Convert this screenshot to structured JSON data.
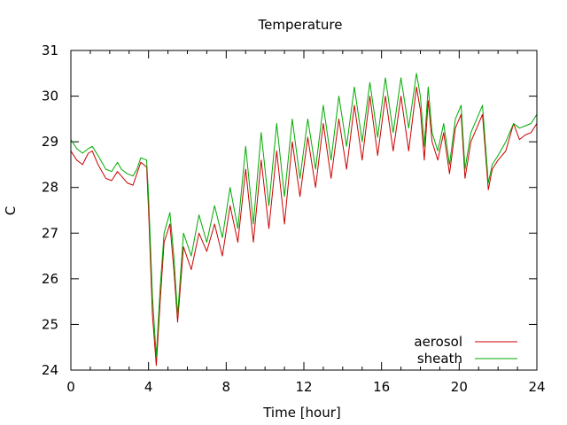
{
  "chart_data": {
    "type": "line",
    "title": "Temperature",
    "xlabel": "Time [hour]",
    "ylabel": "C",
    "xlim": [
      0,
      24
    ],
    "ylim": [
      24,
      31
    ],
    "xticks": [
      0,
      4,
      8,
      12,
      16,
      20,
      24
    ],
    "yticks": [
      24,
      25,
      26,
      27,
      28,
      29,
      30,
      31
    ],
    "grid": false,
    "legend_position": "bottom-right",
    "series": [
      {
        "name": "aerosol",
        "color": "#cc0000",
        "x": [
          0,
          0.3,
          0.6,
          0.9,
          1.1,
          1.4,
          1.8,
          2.1,
          2.4,
          2.6,
          2.9,
          3.2,
          3.4,
          3.6,
          3.9,
          4.0,
          4.2,
          4.4,
          4.6,
          4.8,
          5.1,
          5.3,
          5.5,
          5.8,
          6.2,
          6.6,
          7.0,
          7.4,
          7.8,
          8.2,
          8.6,
          9.0,
          9.4,
          9.8,
          10.2,
          10.6,
          11.0,
          11.4,
          11.8,
          12.2,
          12.6,
          13.0,
          13.4,
          13.8,
          14.2,
          14.6,
          15.0,
          15.4,
          15.8,
          16.2,
          16.6,
          17.0,
          17.4,
          17.8,
          18.0,
          18.2,
          18.4,
          18.6,
          18.9,
          19.2,
          19.5,
          19.8,
          20.1,
          20.3,
          20.6,
          20.9,
          21.2,
          21.5,
          21.7,
          22.0,
          22.4,
          22.8,
          23.1,
          23.4,
          23.7,
          24.0
        ],
        "values": [
          28.8,
          28.6,
          28.5,
          28.75,
          28.8,
          28.5,
          28.2,
          28.15,
          28.35,
          28.25,
          28.1,
          28.05,
          28.3,
          28.55,
          28.45,
          27.5,
          25.2,
          24.1,
          25.5,
          26.8,
          27.2,
          26.2,
          25.05,
          26.7,
          26.2,
          27.0,
          26.6,
          27.2,
          26.5,
          27.6,
          26.8,
          28.4,
          26.8,
          28.6,
          27.1,
          28.8,
          27.2,
          29.0,
          27.8,
          29.1,
          28.0,
          29.4,
          28.2,
          29.5,
          28.4,
          29.8,
          28.6,
          30.0,
          28.7,
          30.0,
          28.8,
          30.0,
          28.8,
          30.2,
          29.7,
          28.6,
          29.9,
          29.0,
          28.6,
          29.2,
          28.3,
          29.3,
          29.6,
          28.2,
          29.0,
          29.3,
          29.6,
          27.95,
          28.4,
          28.6,
          28.8,
          29.4,
          29.05,
          29.15,
          29.2,
          29.4
        ]
      },
      {
        "name": "sheath",
        "color": "#00aa00",
        "x": [
          0,
          0.3,
          0.6,
          0.9,
          1.1,
          1.4,
          1.8,
          2.1,
          2.4,
          2.6,
          2.9,
          3.2,
          3.4,
          3.6,
          3.9,
          4.0,
          4.2,
          4.4,
          4.6,
          4.8,
          5.1,
          5.3,
          5.5,
          5.8,
          6.2,
          6.6,
          7.0,
          7.4,
          7.8,
          8.2,
          8.6,
          9.0,
          9.4,
          9.8,
          10.2,
          10.6,
          11.0,
          11.4,
          11.8,
          12.2,
          12.6,
          13.0,
          13.4,
          13.8,
          14.2,
          14.6,
          15.0,
          15.4,
          15.8,
          16.2,
          16.6,
          17.0,
          17.4,
          17.8,
          18.0,
          18.2,
          18.4,
          18.6,
          18.9,
          19.2,
          19.5,
          19.8,
          20.1,
          20.3,
          20.6,
          20.9,
          21.2,
          21.5,
          21.7,
          22.0,
          22.4,
          22.8,
          23.1,
          23.4,
          23.7,
          24.0
        ],
        "values": [
          29.05,
          28.85,
          28.75,
          28.85,
          28.9,
          28.7,
          28.4,
          28.35,
          28.55,
          28.4,
          28.3,
          28.25,
          28.4,
          28.65,
          28.6,
          27.8,
          25.6,
          24.3,
          25.8,
          27.0,
          27.45,
          26.5,
          25.2,
          27.0,
          26.5,
          27.4,
          26.8,
          27.6,
          26.9,
          28.0,
          27.1,
          28.9,
          27.2,
          29.2,
          27.6,
          29.4,
          27.8,
          29.5,
          28.2,
          29.5,
          28.4,
          29.8,
          28.6,
          30.0,
          28.9,
          30.2,
          29.0,
          30.3,
          29.1,
          30.4,
          29.2,
          30.4,
          29.3,
          30.5,
          30.0,
          28.9,
          30.2,
          29.2,
          28.8,
          29.4,
          28.5,
          29.5,
          29.8,
          28.4,
          29.2,
          29.5,
          29.8,
          28.1,
          28.5,
          28.7,
          29.0,
          29.4,
          29.3,
          29.35,
          29.4,
          29.6
        ]
      }
    ]
  }
}
